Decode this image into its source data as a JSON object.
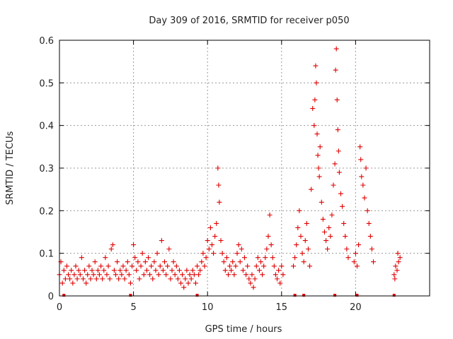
{
  "chart_data": {
    "type": "scatter",
    "title": "Day 309 of 2016, SRMTID for receiver p050",
    "xlabel": "GPS time / hours",
    "ylabel": "SRMTID / TECUs",
    "xlim": [
      0,
      25
    ],
    "ylim": [
      0,
      0.6
    ],
    "x_ticks": [
      "0",
      "5",
      "10",
      "15",
      "20"
    ],
    "y_ticks": [
      "0",
      "0.1",
      "0.2",
      "0.3",
      "0.4",
      "0.5",
      "0.6"
    ],
    "x_tick_values": [
      0,
      5,
      10,
      15,
      20
    ],
    "y_tick_values": [
      0,
      0.1,
      0.2,
      0.3,
      0.4,
      0.5,
      0.6
    ],
    "grid": true,
    "marker": "+",
    "marker_color": "#e00000",
    "baseline_markers_x": [
      0.3,
      4.8,
      9.3,
      15.9,
      16.5,
      18.6,
      20.1,
      22.6
    ],
    "series": [
      {
        "name": "SRMTID",
        "points": [
          [
            0.0,
            0.05
          ],
          [
            0.1,
            0.08
          ],
          [
            0.2,
            0.03
          ],
          [
            0.3,
            0.06
          ],
          [
            0.4,
            0.04
          ],
          [
            0.5,
            0.07
          ],
          [
            0.6,
            0.05
          ],
          [
            0.7,
            0.04
          ],
          [
            0.8,
            0.06
          ],
          [
            0.9,
            0.03
          ],
          [
            1.0,
            0.05
          ],
          [
            1.1,
            0.07
          ],
          [
            1.2,
            0.04
          ],
          [
            1.3,
            0.06
          ],
          [
            1.4,
            0.05
          ],
          [
            1.5,
            0.09
          ],
          [
            1.6,
            0.04
          ],
          [
            1.7,
            0.06
          ],
          [
            1.8,
            0.03
          ],
          [
            1.9,
            0.05
          ],
          [
            2.0,
            0.07
          ],
          [
            2.1,
            0.04
          ],
          [
            2.2,
            0.06
          ],
          [
            2.3,
            0.05
          ],
          [
            2.4,
            0.08
          ],
          [
            2.5,
            0.04
          ],
          [
            2.6,
            0.06
          ],
          [
            2.7,
            0.05
          ],
          [
            2.8,
            0.07
          ],
          [
            2.9,
            0.04
          ],
          [
            3.0,
            0.06
          ],
          [
            3.1,
            0.09
          ],
          [
            3.2,
            0.05
          ],
          [
            3.3,
            0.07
          ],
          [
            3.4,
            0.04
          ],
          [
            3.5,
            0.11
          ],
          [
            3.6,
            0.12
          ],
          [
            3.7,
            0.06
          ],
          [
            3.8,
            0.05
          ],
          [
            3.9,
            0.08
          ],
          [
            4.0,
            0.04
          ],
          [
            4.1,
            0.06
          ],
          [
            4.2,
            0.05
          ],
          [
            4.3,
            0.07
          ],
          [
            4.4,
            0.04
          ],
          [
            4.5,
            0.06
          ],
          [
            4.6,
            0.08
          ],
          [
            4.7,
            0.05
          ],
          [
            4.8,
            0.03
          ],
          [
            4.9,
            0.07
          ],
          [
            5.0,
            0.12
          ],
          [
            5.1,
            0.09
          ],
          [
            5.2,
            0.06
          ],
          [
            5.3,
            0.08
          ],
          [
            5.4,
            0.04
          ],
          [
            5.5,
            0.07
          ],
          [
            5.6,
            0.1
          ],
          [
            5.7,
            0.05
          ],
          [
            5.8,
            0.08
          ],
          [
            5.9,
            0.06
          ],
          [
            6.0,
            0.09
          ],
          [
            6.1,
            0.05
          ],
          [
            6.2,
            0.07
          ],
          [
            6.3,
            0.04
          ],
          [
            6.4,
            0.08
          ],
          [
            6.5,
            0.06
          ],
          [
            6.6,
            0.1
          ],
          [
            6.7,
            0.05
          ],
          [
            6.8,
            0.07
          ],
          [
            6.9,
            0.13
          ],
          [
            7.0,
            0.06
          ],
          [
            7.1,
            0.08
          ],
          [
            7.2,
            0.05
          ],
          [
            7.3,
            0.07
          ],
          [
            7.4,
            0.11
          ],
          [
            7.5,
            0.04
          ],
          [
            7.6,
            0.06
          ],
          [
            7.7,
            0.08
          ],
          [
            7.8,
            0.05
          ],
          [
            7.9,
            0.07
          ],
          [
            8.0,
            0.04
          ],
          [
            8.1,
            0.06
          ],
          [
            8.2,
            0.03
          ],
          [
            8.3,
            0.05
          ],
          [
            8.4,
            0.02
          ],
          [
            8.5,
            0.04
          ],
          [
            8.6,
            0.06
          ],
          [
            8.7,
            0.03
          ],
          [
            8.8,
            0.05
          ],
          [
            8.9,
            0.04
          ],
          [
            9.0,
            0.06
          ],
          [
            9.1,
            0.05
          ],
          [
            9.2,
            0.03
          ],
          [
            9.3,
            0.07
          ],
          [
            9.4,
            0.05
          ],
          [
            9.5,
            0.06
          ],
          [
            9.6,
            0.08
          ],
          [
            9.7,
            0.1
          ],
          [
            9.8,
            0.07
          ],
          [
            9.9,
            0.09
          ],
          [
            10.0,
            0.13
          ],
          [
            10.1,
            0.11
          ],
          [
            10.2,
            0.16
          ],
          [
            10.3,
            0.12
          ],
          [
            10.4,
            0.1
          ],
          [
            10.5,
            0.14
          ],
          [
            10.6,
            0.17
          ],
          [
            10.7,
            0.3
          ],
          [
            10.75,
            0.26
          ],
          [
            10.8,
            0.22
          ],
          [
            10.9,
            0.13
          ],
          [
            11.0,
            0.1
          ],
          [
            11.1,
            0.08
          ],
          [
            11.2,
            0.06
          ],
          [
            11.3,
            0.09
          ],
          [
            11.4,
            0.05
          ],
          [
            11.5,
            0.07
          ],
          [
            11.6,
            0.06
          ],
          [
            11.7,
            0.08
          ],
          [
            11.8,
            0.05
          ],
          [
            11.9,
            0.07
          ],
          [
            12.0,
            0.1
          ],
          [
            12.1,
            0.12
          ],
          [
            12.2,
            0.08
          ],
          [
            12.3,
            0.11
          ],
          [
            12.4,
            0.06
          ],
          [
            12.5,
            0.09
          ],
          [
            12.6,
            0.05
          ],
          [
            12.7,
            0.07
          ],
          [
            12.8,
            0.04
          ],
          [
            12.9,
            0.03
          ],
          [
            13.0,
            0.05
          ],
          [
            13.1,
            0.02
          ],
          [
            13.2,
            0.04
          ],
          [
            13.3,
            0.07
          ],
          [
            13.4,
            0.09
          ],
          [
            13.5,
            0.06
          ],
          [
            13.6,
            0.08
          ],
          [
            13.7,
            0.05
          ],
          [
            13.8,
            0.07
          ],
          [
            13.9,
            0.09
          ],
          [
            14.0,
            0.11
          ],
          [
            14.1,
            0.14
          ],
          [
            14.2,
            0.19
          ],
          [
            14.3,
            0.12
          ],
          [
            14.4,
            0.09
          ],
          [
            14.5,
            0.07
          ],
          [
            14.6,
            0.05
          ],
          [
            14.7,
            0.04
          ],
          [
            14.8,
            0.06
          ],
          [
            14.9,
            0.03
          ],
          [
            15.0,
            0.07
          ],
          [
            15.1,
            0.05
          ],
          [
            15.8,
            0.07
          ],
          [
            15.9,
            0.09
          ],
          [
            16.0,
            0.12
          ],
          [
            16.1,
            0.16
          ],
          [
            16.2,
            0.2
          ],
          [
            16.3,
            0.14
          ],
          [
            16.4,
            0.1
          ],
          [
            16.5,
            0.08
          ],
          [
            16.6,
            0.13
          ],
          [
            16.7,
            0.17
          ],
          [
            16.8,
            0.11
          ],
          [
            16.9,
            0.07
          ],
          [
            17.0,
            0.25
          ],
          [
            17.1,
            0.44
          ],
          [
            17.2,
            0.4
          ],
          [
            17.25,
            0.46
          ],
          [
            17.3,
            0.54
          ],
          [
            17.35,
            0.5
          ],
          [
            17.4,
            0.38
          ],
          [
            17.45,
            0.33
          ],
          [
            17.5,
            0.3
          ],
          [
            17.55,
            0.28
          ],
          [
            17.6,
            0.35
          ],
          [
            17.7,
            0.22
          ],
          [
            17.8,
            0.18
          ],
          [
            17.9,
            0.15
          ],
          [
            18.0,
            0.13
          ],
          [
            18.1,
            0.11
          ],
          [
            18.2,
            0.16
          ],
          [
            18.3,
            0.14
          ],
          [
            18.4,
            0.19
          ],
          [
            18.5,
            0.26
          ],
          [
            18.6,
            0.31
          ],
          [
            18.65,
            0.53
          ],
          [
            18.7,
            0.58
          ],
          [
            18.75,
            0.46
          ],
          [
            18.8,
            0.39
          ],
          [
            18.85,
            0.34
          ],
          [
            18.9,
            0.29
          ],
          [
            19.0,
            0.24
          ],
          [
            19.1,
            0.21
          ],
          [
            19.2,
            0.17
          ],
          [
            19.3,
            0.14
          ],
          [
            19.4,
            0.11
          ],
          [
            19.5,
            0.09
          ],
          [
            19.9,
            0.08
          ],
          [
            20.0,
            0.1
          ],
          [
            20.1,
            0.07
          ],
          [
            20.2,
            0.12
          ],
          [
            20.3,
            0.35
          ],
          [
            20.35,
            0.32
          ],
          [
            20.4,
            0.28
          ],
          [
            20.5,
            0.26
          ],
          [
            20.6,
            0.23
          ],
          [
            20.7,
            0.3
          ],
          [
            20.8,
            0.2
          ],
          [
            20.9,
            0.17
          ],
          [
            21.0,
            0.14
          ],
          [
            21.1,
            0.11
          ],
          [
            21.2,
            0.08
          ],
          [
            22.6,
            0.05
          ],
          [
            22.7,
            0.07
          ],
          [
            22.8,
            0.06
          ],
          [
            22.9,
            0.08
          ],
          [
            23.0,
            0.09
          ],
          [
            22.65,
            0.04
          ],
          [
            22.85,
            0.1
          ]
        ]
      }
    ]
  }
}
